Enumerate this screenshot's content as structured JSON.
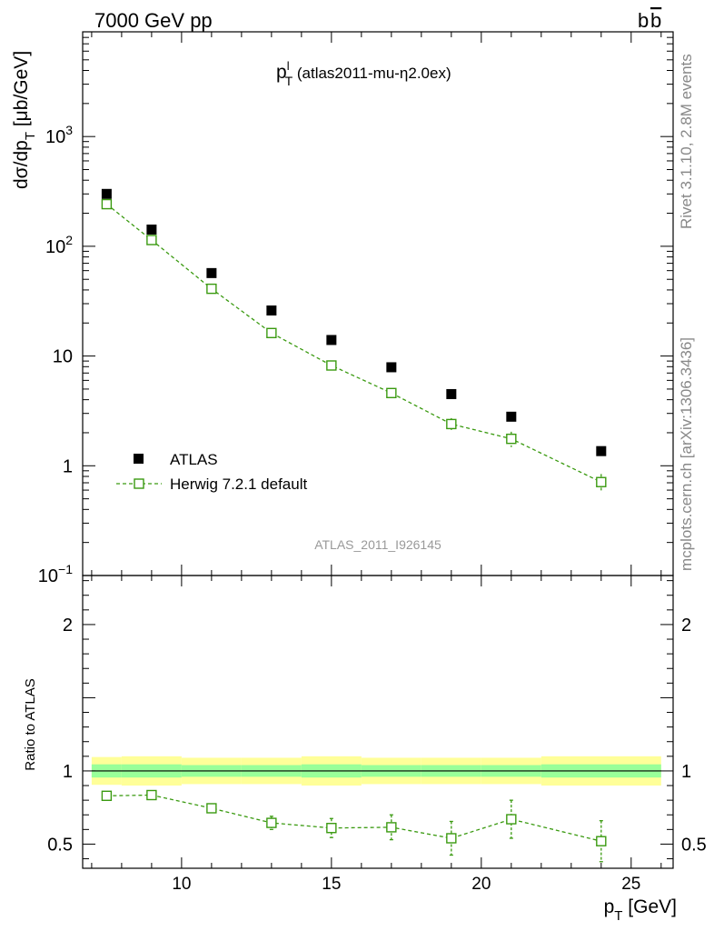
{
  "header": {
    "left": "7000 GeV pp",
    "right_main": "b",
    "right_bar": "b"
  },
  "side_labels": {
    "rivet": "Rivet 3.1.10,  2.8M events",
    "mcplots": "mcplots.cern.ch [arXiv:1306.3436]"
  },
  "chart_data": [
    {
      "type": "scatter",
      "panel": "main",
      "title": {
        "main": "p",
        "sup": "l",
        "sub": "T",
        "suffix": " (atlas2011-mu-η2.0ex)"
      },
      "ylabel": {
        "pre": "dσ/dp",
        "sub": "T",
        "post": " [μb/GeV]"
      },
      "xlim": [
        6.7,
        26.4
      ],
      "ylim": [
        0.1,
        9000
      ],
      "yscale": "log",
      "yticks": [
        {
          "value": 0.1,
          "base": "10",
          "exp": "−1"
        },
        {
          "value": 1,
          "label": "1"
        },
        {
          "value": 10,
          "label": "10"
        },
        {
          "value": 100,
          "base": "10",
          "exp": "2"
        },
        {
          "value": 1000,
          "base": "10",
          "exp": "3"
        }
      ],
      "watermark": "ATLAS_2011_I926145",
      "legend": {
        "position": "bottom-left"
      },
      "series": [
        {
          "name": "ATLAS",
          "color": "#000000",
          "marker": "filled-square",
          "x": [
            7.5,
            9,
            11,
            13,
            15,
            17,
            19,
            21,
            24
          ],
          "y": [
            300,
            142,
            57,
            26,
            14,
            7.9,
            4.5,
            2.8,
            1.36
          ]
        },
        {
          "name": "Herwig 7.2.1 default",
          "color": "#3a9a10",
          "marker": "open-square",
          "x": [
            7.5,
            9,
            11,
            13,
            15,
            17,
            19,
            21,
            24
          ],
          "y": [
            242,
            114,
            41,
            16.2,
            8.2,
            4.6,
            2.4,
            1.76,
            0.71
          ],
          "yerr": [
            6,
            3,
            2,
            0.8,
            0.5,
            0.45,
            0.32,
            0.28,
            0.13
          ]
        }
      ]
    },
    {
      "type": "line",
      "panel": "ratio",
      "ylabel": "Ratio to ATLAS",
      "xlabel": {
        "pre": "p",
        "sub": "T",
        "post": " [GeV]"
      },
      "xlim": [
        6.7,
        26.4
      ],
      "ylim": [
        0.335,
        2.335
      ],
      "xticks": [
        10,
        15,
        20,
        25
      ],
      "yticks": [
        0.5,
        1,
        2
      ],
      "reference": 1,
      "bands": {
        "bins": [
          7,
          8,
          10,
          12,
          14,
          16,
          18,
          20,
          22,
          26
        ],
        "outer": [
          0.095,
          0.1,
          0.09,
          0.09,
          0.1,
          0.09,
          0.09,
          0.09,
          0.1
        ],
        "inner": [
          0.045,
          0.045,
          0.04,
          0.04,
          0.045,
          0.04,
          0.04,
          0.04,
          0.045
        ],
        "outer_color": "#ffff99",
        "inner_color": "#99ff99"
      },
      "series": [
        {
          "name": "Herwig 7.2.1 default",
          "color": "#3a9a10",
          "x": [
            7.5,
            9,
            11,
            13,
            15,
            17,
            19,
            21,
            24
          ],
          "y": [
            0.83,
            0.835,
            0.745,
            0.645,
            0.61,
            0.615,
            0.54,
            0.67,
            0.52
          ],
          "yerr": [
            0.015,
            0.015,
            0.025,
            0.045,
            0.065,
            0.085,
            0.115,
            0.13,
            0.14
          ]
        }
      ]
    }
  ]
}
